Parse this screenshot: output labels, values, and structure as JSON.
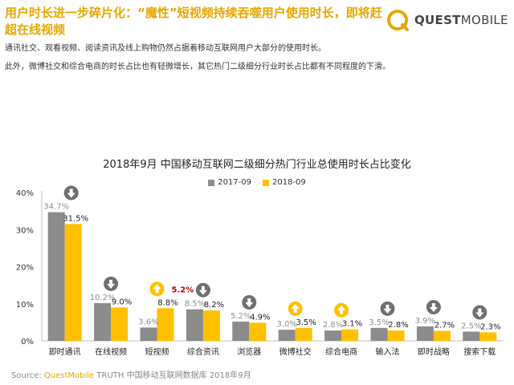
{
  "header": {
    "headline": "用户时长进一步碎片化：“魔性”短视频持续吞噬用户使用时长，即将赶超在线视频",
    "brand": {
      "quest": "QUEST",
      "mobile": "MOBILE"
    },
    "paragraph1": "通讯社交、观看视频、阅读资讯及线上购物仍然占据着移动互联网用户大部分的使用时长。",
    "paragraph2": "此外，微博社交和综合电商的时长占比也有轻微增长，其它热门二级细分行业时长占比都有不同程度的下滑。"
  },
  "colors": {
    "series_2017": "#8c8c8c",
    "series_2018": "#ffc000",
    "down_arrow": "#6f6f6f",
    "up_arrow": "#ffc000",
    "highlight_label": "#c00000",
    "brand": "#e6a700"
  },
  "chart_data": {
    "type": "bar",
    "title": "2018年9月 中国移动互联网二级细分热门行业总使用时长占比变化",
    "categories": [
      "即时通讯",
      "在线视频",
      "短视频",
      "综合资讯",
      "浏览器",
      "微博社交",
      "综合电商",
      "输入法",
      "即时战略",
      "搜索下载"
    ],
    "series": [
      {
        "name": "2017-09",
        "values": [
          34.7,
          10.2,
          3.6,
          8.5,
          5.2,
          3.0,
          2.8,
          3.5,
          3.9,
          2.5
        ],
        "labels": [
          "34.7%",
          "10.2%",
          "3.6%",
          "8.5%",
          "5.2%",
          "3.0%",
          "2.8%",
          "3.5%",
          "3.9%",
          "2.5%"
        ]
      },
      {
        "name": "2018-09",
        "values": [
          31.5,
          9.0,
          8.8,
          8.2,
          4.9,
          3.5,
          3.1,
          2.8,
          2.7,
          2.3
        ],
        "labels": [
          "31.5%",
          "9.0%",
          "8.8%",
          "8.2%",
          "4.9%",
          "3.5%",
          "3.1%",
          "2.8%",
          "2.7%",
          "2.3%"
        ]
      }
    ],
    "trend": [
      "down",
      "down",
      "up",
      "down",
      "down",
      "up",
      "up",
      "down",
      "down",
      "down"
    ],
    "annotation": {
      "category": "短视频",
      "text": "5.2%"
    },
    "ylim": [
      0,
      40
    ],
    "yticks": [
      "0%",
      "10%",
      "20%",
      "30%",
      "40%"
    ],
    "legend": "top-center",
    "grid": false
  },
  "source": {
    "prefix": "Source:",
    "brand": "QuestMobile",
    "rest": "TRUTH 中国移动互联网数据库 2018年9月"
  }
}
